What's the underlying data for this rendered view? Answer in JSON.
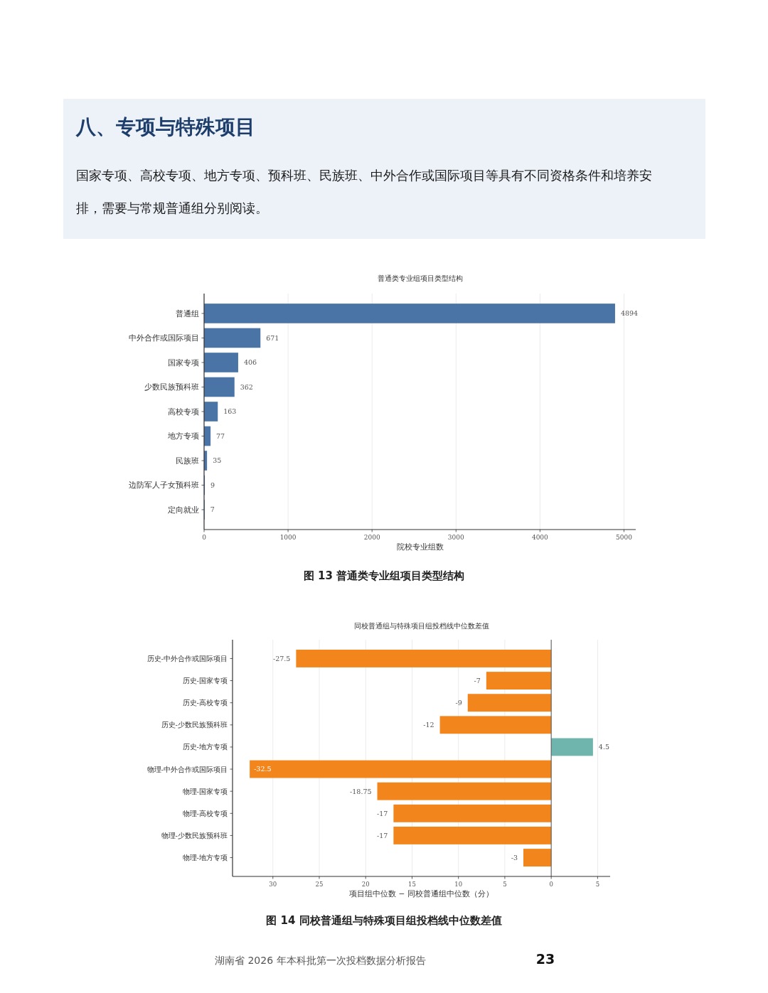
{
  "chart_data": [
    {
      "type": "other",
      "title": "八、专项与特殊项目",
      "annotations": [
        "国家专项、高校专项、地方专项、预科班、民族班、中外合作或国际项目等具有不同资格条件和培养安排，需要与常规普通组分别阅读。"
      ]
    },
    {
      "type": "bar",
      "orientation": "horizontal",
      "title": "普通类专业组项目类型结构",
      "categories": [
        "普通组",
        "中外合作或国际项目",
        "国家专项",
        "少数民族预科班",
        "高校专项",
        "地方专项",
        "民族班",
        "边防军人子女预科班",
        "定向就业"
      ],
      "values": [
        4894,
        671,
        406,
        362,
        163,
        77,
        35,
        9,
        7
      ],
      "color": "#4a74a5",
      "xlim": [
        0,
        5140
      ],
      "xticks": [
        0,
        1000,
        2000,
        3000,
        4000,
        5000
      ],
      "xlabel": "院校专业组数",
      "grid": "x",
      "data_labels": true,
      "annotations": [
        "图 13 普通类专业组项目类型结构"
      ]
    },
    {
      "type": "bar",
      "orientation": "horizontal",
      "title": "同校普通组与特殊项目组投档线中位数差值",
      "categories": [
        "历史-中外合作或国际项目",
        "历史-国家专项",
        "历史-高校专项",
        "历史-少数民族预科班",
        "历史-地方专项",
        "物理-中外合作或国际项目",
        "物理-国家专项",
        "物理-高校专项",
        "物理-少数民族预科班",
        "物理-地方专项"
      ],
      "values": [
        -27.5,
        -7,
        -9,
        -12,
        4.5,
        -32.5,
        -18.75,
        -17,
        -17,
        -3
      ],
      "colors": [
        "#f2861c",
        "#f2861c",
        "#f2861c",
        "#f2861c",
        "#6fb5ae",
        "#f2861c",
        "#f2861c",
        "#f2861c",
        "#f2861c",
        "#f2861c"
      ],
      "xlim": [
        -34.35,
        6.35
      ],
      "xticks": [
        {
          "value": -30,
          "label": "30"
        },
        {
          "value": -25,
          "label": "25"
        },
        {
          "value": -20,
          "label": "20"
        },
        {
          "value": -15,
          "label": "15"
        },
        {
          "value": -10,
          "label": "10"
        },
        {
          "value": -5,
          "label": "5"
        },
        0,
        5
      ],
      "xlabel": "项目组中位数 − 同校普通组中位数（分）",
      "grid": "x",
      "data_labels": true,
      "ref_lines": [
        {
          "axis": "x",
          "value": 0,
          "color": "#555555"
        }
      ],
      "annotations": [
        "图 14 同校普通组与特殊项目组投档线中位数差值",
        "湖南省 2026 年本科批第一次投档数据分析报告",
        "23"
      ]
    }
  ]
}
